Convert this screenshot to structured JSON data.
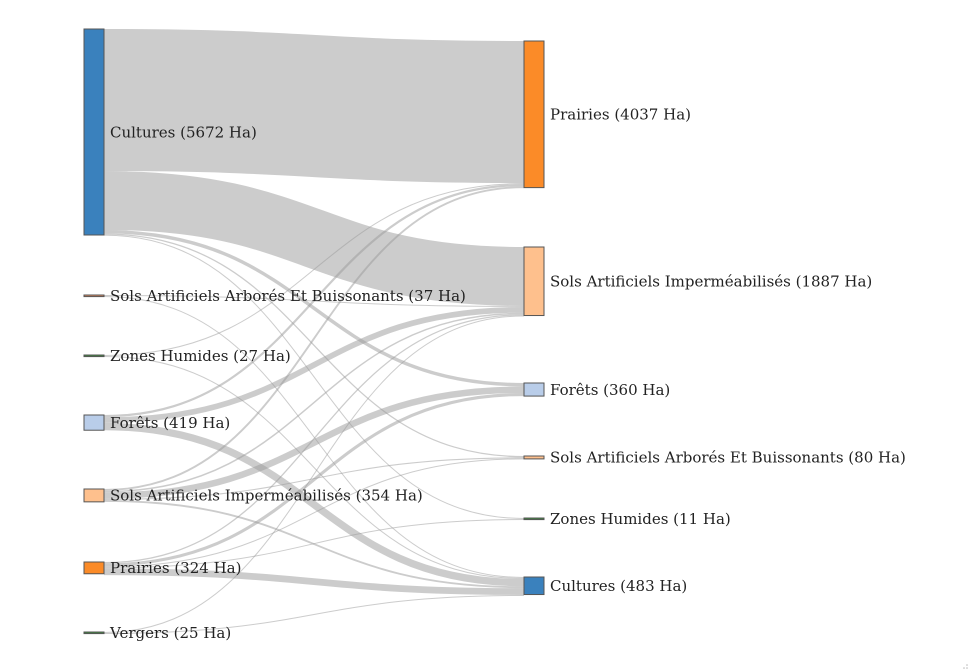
{
  "chart_data": {
    "type": "sankey",
    "unit": "Ha",
    "sources": [
      {
        "id": "s_cultures",
        "label": "Cultures (5672 Ha)",
        "value": 5672,
        "color": "#3a81bd"
      },
      {
        "id": "s_sols_arb",
        "label": "Sols Artificiels Arborés Et Buissonants (37 Ha)",
        "value": 37,
        "color": "#e0885a"
      },
      {
        "id": "s_zones",
        "label": "Zones Humides (27 Ha)",
        "value": 27,
        "color": "#3d8a3a"
      },
      {
        "id": "s_forets",
        "label": "Forêts (419 Ha)",
        "value": 419,
        "color": "#b9cde9"
      },
      {
        "id": "s_sols_imp",
        "label": "Sols Artificiels Imperméabilisés (354 Ha)",
        "value": 354,
        "color": "#fec08d"
      },
      {
        "id": "s_prairies",
        "label": "Prairies (324 Ha)",
        "value": 324,
        "color": "#fb8b28"
      },
      {
        "id": "s_vergers",
        "label": "Vergers (25 Ha)",
        "value": 25,
        "color": "#3d8a3a"
      }
    ],
    "targets": [
      {
        "id": "t_prairies",
        "label": "Prairies (4037 Ha)",
        "value": 4037,
        "color": "#fb8b28"
      },
      {
        "id": "t_sols_imp",
        "label": "Sols Artificiels Imperméabilisés (1887 Ha)",
        "value": 1887,
        "color": "#fec08d"
      },
      {
        "id": "t_forets",
        "label": "Forêts (360 Ha)",
        "value": 360,
        "color": "#b9cde9"
      },
      {
        "id": "t_sols_arb",
        "label": "Sols Artificiels Arborés Et Buissonants (80 Ha)",
        "value": 80,
        "color": "#fec08d"
      },
      {
        "id": "t_zones",
        "label": "Zones Humides (11 Ha)",
        "value": 11,
        "color": "#3d8a3a"
      },
      {
        "id": "t_cultures",
        "label": "Cultures (483 Ha)",
        "value": 483,
        "color": "#3a81bd"
      }
    ],
    "links": [
      {
        "source": "s_cultures",
        "target": "t_prairies",
        "value": 3910
      },
      {
        "source": "s_cultures",
        "target": "t_sols_imp",
        "value": 1623
      },
      {
        "source": "s_cultures",
        "target": "t_forets",
        "value": 95
      },
      {
        "source": "s_cultures",
        "target": "t_sols_arb",
        "value": 35
      },
      {
        "source": "s_cultures",
        "target": "t_zones",
        "value": 9
      },
      {
        "source": "s_sols_arb",
        "target": "t_sols_imp",
        "value": 25
      },
      {
        "source": "s_sols_arb",
        "target": "t_cultures",
        "value": 12
      },
      {
        "source": "s_zones",
        "target": "t_prairies",
        "value": 15
      },
      {
        "source": "s_zones",
        "target": "t_cultures",
        "value": 12
      },
      {
        "source": "s_forets",
        "target": "t_prairies",
        "value": 60
      },
      {
        "source": "s_forets",
        "target": "t_sols_imp",
        "value": 158
      },
      {
        "source": "s_forets",
        "target": "t_cultures",
        "value": 201
      },
      {
        "source": "s_sols_imp",
        "target": "t_prairies",
        "value": 52
      },
      {
        "source": "s_sols_imp",
        "target": "t_sols_imp",
        "value": 41
      },
      {
        "source": "s_sols_imp",
        "target": "t_forets",
        "value": 180
      },
      {
        "source": "s_sols_imp",
        "target": "t_sols_arb",
        "value": 30
      },
      {
        "source": "s_sols_imp",
        "target": "t_cultures",
        "value": 51
      },
      {
        "source": "s_prairies",
        "target": "t_sols_imp",
        "value": 35
      },
      {
        "source": "s_prairies",
        "target": "t_forets",
        "value": 85
      },
      {
        "source": "s_prairies",
        "target": "t_sols_arb",
        "value": 15
      },
      {
        "source": "s_prairies",
        "target": "t_zones",
        "value": 2
      },
      {
        "source": "s_prairies",
        "target": "t_cultures",
        "value": 187
      },
      {
        "source": "s_vergers",
        "target": "t_sols_imp",
        "value": 5
      },
      {
        "source": "s_vergers",
        "target": "t_cultures",
        "value": 20
      }
    ]
  }
}
